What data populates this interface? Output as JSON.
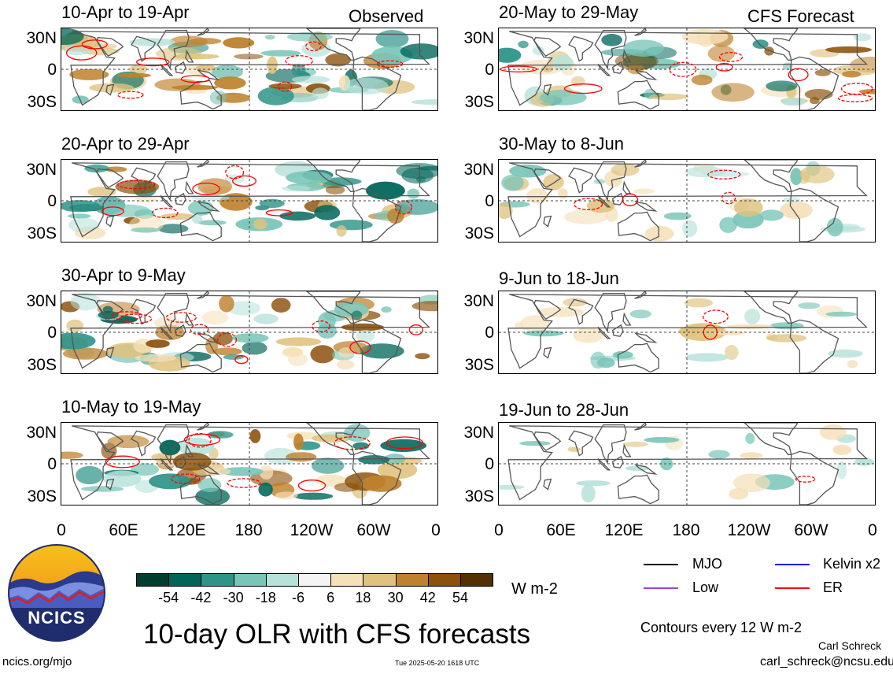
{
  "headers": {
    "left": "Observed",
    "right": "CFS Forecast"
  },
  "panels": [
    {
      "title": "10-Apr to 19-Apr",
      "intensity": 1.0,
      "seed": 11,
      "contours": 9
    },
    {
      "title": "20-Apr to 29-Apr",
      "intensity": 0.95,
      "seed": 23,
      "contours": 8
    },
    {
      "title": "30-Apr to 9-May",
      "intensity": 0.95,
      "seed": 37,
      "contours": 9
    },
    {
      "title": "10-May to 19-May",
      "intensity": 0.9,
      "seed": 41,
      "contours": 8
    },
    {
      "title": "20-May to 29-May",
      "intensity": 0.85,
      "seed": 53,
      "contours": 8
    },
    {
      "title": "30-May to 8-Jun",
      "intensity": 0.6,
      "seed": 67,
      "contours": 4
    },
    {
      "title": "9-Jun to 18-Jun",
      "intensity": 0.45,
      "seed": 79,
      "contours": 2
    },
    {
      "title": "19-Jun to 28-Jun",
      "intensity": 0.35,
      "seed": 83,
      "contours": 1
    }
  ],
  "y_ticks": [
    "30N",
    "0",
    "30S"
  ],
  "x_ticks": [
    "0",
    "60E",
    "120E",
    "180",
    "120W",
    "60W",
    "0"
  ],
  "legend": [
    {
      "label": "MJO",
      "color": "#000000"
    },
    {
      "label": "Kelvin x2",
      "color": "#0000ff"
    },
    {
      "label": "Low",
      "color": "#a040e0"
    },
    {
      "label": "ER",
      "color": "#ff0000"
    }
  ],
  "colorbar": {
    "colors": [
      "#003f30",
      "#00665a",
      "#2e9488",
      "#79c5b8",
      "#b7e2da",
      "#f4f4f4",
      "#f5e0b8",
      "#dfc27d",
      "#bf812d",
      "#8c510a",
      "#543005"
    ],
    "labels": [
      "-54",
      "-42",
      "-30",
      "-18",
      "-6",
      "6",
      "18",
      "30",
      "42",
      "54"
    ],
    "unit": "W m-2"
  },
  "logo_text": "NCICS",
  "main_title": "10-day OLR with CFS forecasts",
  "contour_note": "Contours every 12 W m-2",
  "author": "Carl Schreck",
  "email": "carl_schreck@ncsu.edu",
  "url": "ncics.org/mjo",
  "timestamp": "Tue 2025-05-20 1618 UTC"
}
